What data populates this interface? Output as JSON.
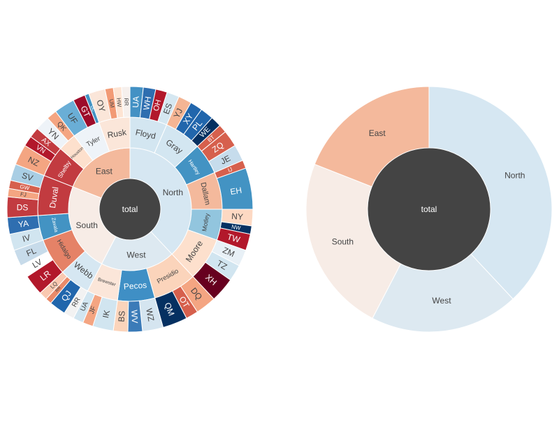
{
  "chart_data": [
    {
      "type": "sunburst",
      "root": "total",
      "region_order": [
        "North",
        "West",
        "South",
        "East"
      ],
      "regions": {
        "North": {
          "value": 70,
          "color": "#d6e7f2",
          "counties": [
            {
              "name": "Floyd",
              "value": 12,
              "color": "#d3e6f1",
              "children": [
                {
                  "name": "UA",
                  "value": 3.2,
                  "color": "#4391c4"
                },
                {
                  "name": "WH",
                  "value": 3.0,
                  "color": "#2f6eb0"
                },
                {
                  "name": "OH",
                  "value": 2.8,
                  "color": "#b2182b"
                },
                {
                  "name": "ES",
                  "value": 3.0,
                  "color": "#d5e7f1"
                }
              ]
            },
            {
              "name": "Gray",
              "value": 12,
              "color": "#d3e6f1",
              "children": [
                {
                  "name": "YJ",
                  "value": 3.2,
                  "color": "#f4b594"
                },
                {
                  "name": "XY",
                  "value": 3.0,
                  "color": "#2166ac"
                },
                {
                  "name": "PL",
                  "value": 3.2,
                  "color": "#2166ac"
                },
                {
                  "name": "WE",
                  "value": 2.6,
                  "color": "#053061"
                }
              ]
            },
            {
              "name": "Hartley",
              "value": 10,
              "color": "#4393c3",
              "children": [
                {
                  "name": "BT",
                  "value": 2.0,
                  "color": "#d6604d"
                },
                {
                  "name": "ZQ",
                  "value": 4.0,
                  "color": "#d6604d"
                },
                {
                  "name": "JE",
                  "value": 4.0,
                  "color": "#c6dcec"
                }
              ]
            },
            {
              "name": "Dallam",
              "value": 12,
              "color": "#f4b99c",
              "children": [
                {
                  "name": "IJ",
                  "value": 2.0,
                  "color": "#d6604d"
                },
                {
                  "name": "EH",
                  "value": 10.0,
                  "color": "#4393c3"
                }
              ]
            },
            {
              "name": "Motley",
              "value": 10,
              "color": "#92c5de",
              "children": [
                {
                  "name": "NY",
                  "value": 4.0,
                  "color": "#fdd9c3"
                },
                {
                  "name": "NW",
                  "value": 2.0,
                  "color": "#053061"
                },
                {
                  "name": "TW",
                  "value": 4.0,
                  "color": "#b2182b"
                }
              ]
            },
            {
              "name": "Moore",
              "value": 14,
              "color": "#fde0cd",
              "children": [
                {
                  "name": "ZM",
                  "value": 4.0,
                  "color": "#e8f0f6"
                },
                {
                  "name": "TZ",
                  "value": 4.0,
                  "color": "#d1e5f0"
                },
                {
                  "name": "XH",
                  "value": 6.0,
                  "color": "#67001f"
                }
              ]
            }
          ]
        },
        "East": {
          "value": 35,
          "color": "#f4b99c",
          "counties": [
            {
              "name": "Shelby",
              "value": 10,
              "color": "#c23b40",
              "children": [
                {
                  "name": "NZ",
                  "value": 5.0,
                  "color": "#f4a582"
                },
                {
                  "name": "VN",
                  "value": 2.5,
                  "color": "#b2182b"
                },
                {
                  "name": "AX",
                  "value": 2.5,
                  "color": "#c23b40"
                }
              ]
            },
            {
              "name": "Houston",
              "value": 6,
              "color": "#fde0cd",
              "children": [
                {
                  "name": "YN",
                  "value": 3.5,
                  "color": "#eef3f8"
                },
                {
                  "name": "QK",
                  "value": 2.5,
                  "color": "#f4a582"
                }
              ]
            },
            {
              "name": "Tyler",
              "value": 9,
              "color": "#eef3f8",
              "children": [
                {
                  "name": "UF",
                  "value": 5.0,
                  "color": "#6aaed6"
                },
                {
                  "name": "GT",
                  "value": 3.0,
                  "color": "#9d0c2a"
                },
                {
                  "name": "DC",
                  "value": 1.0,
                  "color": "#4393c3"
                }
              ]
            },
            {
              "name": "Rusk",
              "value": 10,
              "color": "#fbe6d9",
              "children": [
                {
                  "name": "OY",
                  "value": 4.0,
                  "color": "#fbe6d9"
                },
                {
                  "name": "UM",
                  "value": 2.0,
                  "color": "#f29a75"
                },
                {
                  "name": "HW",
                  "value": 2.0,
                  "color": "#fde4d3"
                },
                {
                  "name": "RR",
                  "value": 2.0,
                  "color": "#f6f0ed"
                }
              ]
            }
          ]
        },
        "South": {
          "value": 43,
          "color": "#f7ece6",
          "counties": [
            {
              "name": "Webb",
              "value": 10,
              "color": "#d6e7f2",
              "children": [
                {
                  "name": "RR",
                  "value": 2.5,
                  "color": "#f2f2f2"
                },
                {
                  "name": "QJ",
                  "value": 4.0,
                  "color": "#2166ac"
                },
                {
                  "name": "RR",
                  "value": 1.5,
                  "color": "#ea8a6a"
                },
                {
                  "name": "LQ",
                  "value": 2.0,
                  "color": "#f9c8b0"
                }
              ]
            },
            {
              "name": "Hidalgo",
              "value": 12,
              "color": "#e58267",
              "children": [
                {
                  "name": "LR",
                  "value": 5.0,
                  "color": "#b2182b"
                },
                {
                  "name": "LV",
                  "value": 3.0,
                  "color": "#ffffff"
                },
                {
                  "name": "FL",
                  "value": 4.0,
                  "color": "#c7dbea"
                }
              ]
            },
            {
              "name": "Zavala",
              "value": 8,
              "color": "#4393c3",
              "children": [
                {
                  "name": "IV",
                  "value": 4.0,
                  "color": "#d1e5f0"
                },
                {
                  "name": "YA",
                  "value": 4.0,
                  "color": "#2f6eb0"
                }
              ]
            },
            {
              "name": "Duval",
              "value": 13,
              "color": "#c23b40",
              "children": [
                {
                  "name": "DS",
                  "value": 5.0,
                  "color": "#c23b40"
                },
                {
                  "name": "FJ",
                  "value": 2.0,
                  "color": "#f4a582"
                },
                {
                  "name": "GW",
                  "value": 2.0,
                  "color": "#d6604d"
                },
                {
                  "name": "SV",
                  "value": 4.0,
                  "color": "#a9cee4"
                }
              ]
            }
          ]
        },
        "West": {
          "value": 36,
          "color": "#dde9f1",
          "counties": [
            {
              "name": "Presidio",
              "value": 14,
              "color": "#fbd4bb",
              "children": [
                {
                  "name": "DQ",
                  "value": 5.0,
                  "color": "#f4a582"
                },
                {
                  "name": "OT",
                  "value": 3.0,
                  "color": "#d6604d"
                },
                {
                  "name": "QM",
                  "value": 6.0,
                  "color": "#053061"
                }
              ]
            },
            {
              "name": "Pecos",
              "value": 12,
              "color": "#3f8fc5",
              "children": [
                {
                  "name": "WZ",
                  "value": 5.0,
                  "color": "#d5e5f0"
                },
                {
                  "name": "WV",
                  "value": 3.5,
                  "color": "#3b7bb8"
                },
                {
                  "name": "BS",
                  "value": 3.5,
                  "color": "#fbd4bb"
                }
              ]
            },
            {
              "name": "Brewster",
              "value": 10,
              "color": "#fbe6d9",
              "children": [
                {
                  "name": "IK",
                  "value": 5.0,
                  "color": "#d1e5f0"
                },
                {
                  "name": "JF",
                  "value": 2.5,
                  "color": "#f4a582"
                },
                {
                  "name": "UA",
                  "value": 2.5,
                  "color": "#d1e5f0"
                }
              ]
            }
          ]
        }
      }
    },
    {
      "type": "sunburst",
      "root": "total",
      "region_order": [
        "North",
        "West",
        "South",
        "East"
      ],
      "regions": {
        "North": {
          "value": 70,
          "color": "#d6e7f2"
        },
        "West": {
          "value": 36,
          "color": "#dde9f1"
        },
        "South": {
          "value": 43,
          "color": "#f7ece6"
        },
        "East": {
          "value": 35,
          "color": "#f4b99c"
        }
      }
    }
  ],
  "colors": {
    "center": "#444444",
    "border": "#ffffff",
    "label_dark": "#444444",
    "label_light": "#ffffff"
  }
}
